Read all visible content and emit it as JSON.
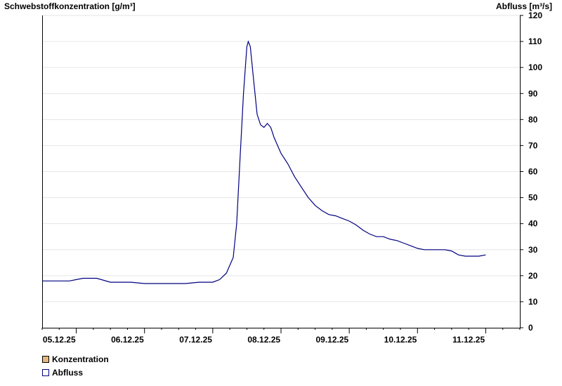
{
  "chart_data": {
    "type": "line",
    "y_left_label": "Schwebstoffkonzentration [g/m³]",
    "y_right_label": "Abfluss [m³/s]",
    "y_right_ticks": [
      0,
      10,
      20,
      30,
      40,
      50,
      60,
      70,
      80,
      90,
      100,
      110,
      120
    ],
    "ylim": [
      0,
      120
    ],
    "x_range_days": [
      4.5,
      11.5
    ],
    "x_ticks": [
      {
        "label": "05.12.25",
        "day": 4.75
      },
      {
        "label": "06.12.25",
        "day": 5.75
      },
      {
        "label": "07.12.25",
        "day": 6.75
      },
      {
        "label": "08.12.25",
        "day": 7.75
      },
      {
        "label": "09.12.25",
        "day": 8.75
      },
      {
        "label": "10.12.25",
        "day": 9.75
      },
      {
        "label": "11.12.25",
        "day": 10.75
      }
    ],
    "grid": "horizontal",
    "legend_position": "bottom-left",
    "series": [
      {
        "name": "Konzentration",
        "color": "#E3B77D",
        "values": []
      },
      {
        "name": "Abfluss",
        "color": "#000080",
        "points": [
          [
            4.5,
            18
          ],
          [
            4.7,
            18
          ],
          [
            4.9,
            18
          ],
          [
            5.0,
            18.5
          ],
          [
            5.1,
            19
          ],
          [
            5.2,
            19
          ],
          [
            5.3,
            19
          ],
          [
            5.5,
            17.5
          ],
          [
            5.8,
            17.5
          ],
          [
            6.0,
            17
          ],
          [
            6.3,
            17
          ],
          [
            6.6,
            17
          ],
          [
            6.8,
            17.5
          ],
          [
            7.0,
            17.5
          ],
          [
            7.1,
            18.5
          ],
          [
            7.2,
            21
          ],
          [
            7.3,
            27
          ],
          [
            7.35,
            40
          ],
          [
            7.4,
            65
          ],
          [
            7.45,
            90
          ],
          [
            7.5,
            108
          ],
          [
            7.52,
            110
          ],
          [
            7.55,
            108
          ],
          [
            7.6,
            95
          ],
          [
            7.65,
            82
          ],
          [
            7.7,
            78
          ],
          [
            7.75,
            77
          ],
          [
            7.8,
            78.5
          ],
          [
            7.85,
            77
          ],
          [
            7.9,
            73
          ],
          [
            8.0,
            67
          ],
          [
            8.1,
            63
          ],
          [
            8.2,
            58
          ],
          [
            8.3,
            54
          ],
          [
            8.4,
            50
          ],
          [
            8.5,
            47
          ],
          [
            8.6,
            45
          ],
          [
            8.7,
            43.5
          ],
          [
            8.8,
            43
          ],
          [
            8.9,
            42
          ],
          [
            9.0,
            41
          ],
          [
            9.1,
            39.5
          ],
          [
            9.2,
            37.5
          ],
          [
            9.3,
            36
          ],
          [
            9.4,
            35
          ],
          [
            9.5,
            35
          ],
          [
            9.6,
            34
          ],
          [
            9.7,
            33.5
          ],
          [
            9.8,
            32.5
          ],
          [
            9.9,
            31.5
          ],
          [
            10.0,
            30.5
          ],
          [
            10.1,
            30
          ],
          [
            10.2,
            30
          ],
          [
            10.3,
            30
          ],
          [
            10.4,
            30
          ],
          [
            10.5,
            29.5
          ],
          [
            10.6,
            28
          ],
          [
            10.7,
            27.5
          ],
          [
            10.8,
            27.5
          ],
          [
            10.9,
            27.5
          ],
          [
            11.0,
            28
          ]
        ]
      }
    ]
  }
}
